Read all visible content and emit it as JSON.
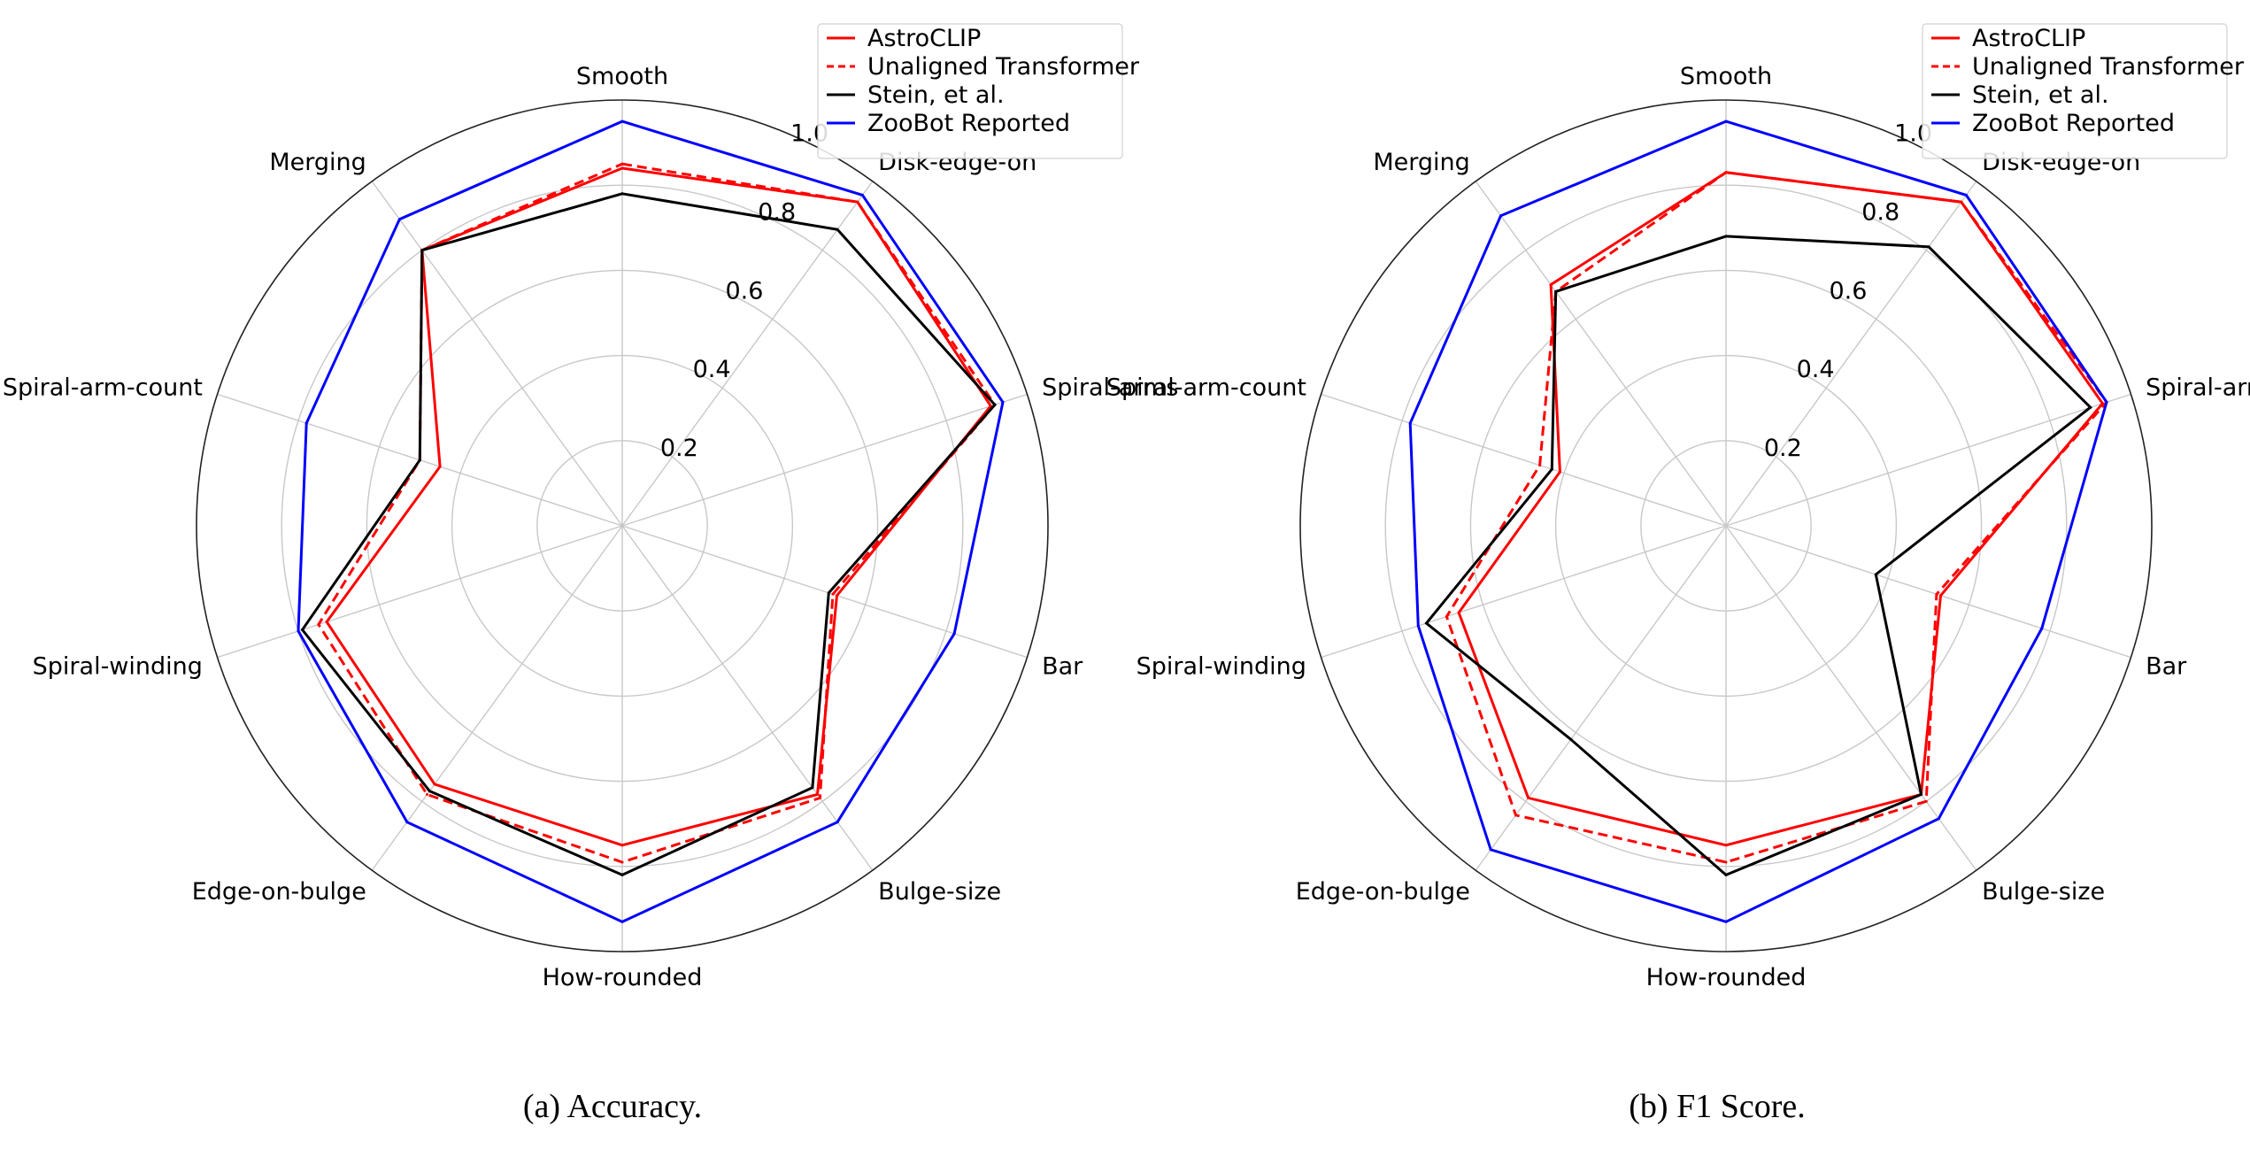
{
  "captions": [
    "(a) Accuracy.",
    "(b) F1 Score."
  ],
  "chart_data": [
    {
      "type": "radar",
      "caption": "(a) Accuracy.",
      "categories": [
        "Smooth",
        "Disk-edge-on",
        "Spiral-arms",
        "Bar",
        "Bulge-size",
        "How-rounded",
        "Edge-on-bulge",
        "Spiral-winding",
        "Spiral-arm-count",
        "Merging"
      ],
      "radial_ticks": [
        "0.2",
        "0.4",
        "0.6",
        "0.8",
        "1.0"
      ],
      "rlim": [
        0,
        1.0
      ],
      "grid": true,
      "legend_position": "top-right",
      "series": [
        {
          "name": "AstroCLIP",
          "color": "#ff0000",
          "dash": "solid",
          "values": [
            0.84,
            0.94,
            0.91,
            0.53,
            0.78,
            0.75,
            0.75,
            0.73,
            0.45,
            0.8
          ]
        },
        {
          "name": "Unaligned Transformer",
          "color": "#ff0000",
          "dash": "dashed",
          "values": [
            0.85,
            0.94,
            0.92,
            0.52,
            0.79,
            0.79,
            0.78,
            0.75,
            0.5,
            0.8
          ]
        },
        {
          "name": "Stein, et al.",
          "color": "#000000",
          "dash": "solid",
          "values": [
            0.78,
            0.86,
            0.92,
            0.51,
            0.76,
            0.82,
            0.77,
            0.79,
            0.5,
            0.8
          ]
        },
        {
          "name": "ZooBot Reported",
          "color": "#0000ff",
          "dash": "solid",
          "values": [
            0.95,
            0.96,
            0.94,
            0.82,
            0.86,
            0.93,
            0.86,
            0.8,
            0.78,
            0.89
          ]
        }
      ]
    },
    {
      "type": "radar",
      "caption": "(b) F1 Score.",
      "categories": [
        "Smooth",
        "Disk-edge-on",
        "Spiral-arms",
        "Bar",
        "Bulge-size",
        "How-rounded",
        "Edge-on-bulge",
        "Spiral-winding",
        "Spiral-arm-count",
        "Merging"
      ],
      "radial_ticks": [
        "0.2",
        "0.4",
        "0.6",
        "0.8",
        "1.0"
      ],
      "rlim": [
        0,
        1.0
      ],
      "grid": true,
      "legend_position": "top-right",
      "series": [
        {
          "name": "AstroCLIP",
          "color": "#ff0000",
          "dash": "solid",
          "values": [
            0.83,
            0.94,
            0.93,
            0.53,
            0.78,
            0.75,
            0.79,
            0.66,
            0.41,
            0.7
          ]
        },
        {
          "name": "Unaligned Transformer",
          "color": "#ff0000",
          "dash": "dashed",
          "values": [
            0.83,
            0.94,
            0.94,
            0.52,
            0.8,
            0.79,
            0.84,
            0.69,
            0.46,
            0.68
          ]
        },
        {
          "name": "Stein, et al.",
          "color": "#000000",
          "dash": "solid",
          "values": [
            0.68,
            0.81,
            0.9,
            0.37,
            0.78,
            0.82,
            0.62,
            0.74,
            0.43,
            0.68
          ]
        },
        {
          "name": "ZooBot Reported",
          "color": "#0000ff",
          "dash": "solid",
          "values": [
            0.95,
            0.96,
            0.94,
            0.78,
            0.85,
            0.93,
            0.94,
            0.76,
            0.78,
            0.9
          ]
        }
      ]
    }
  ]
}
